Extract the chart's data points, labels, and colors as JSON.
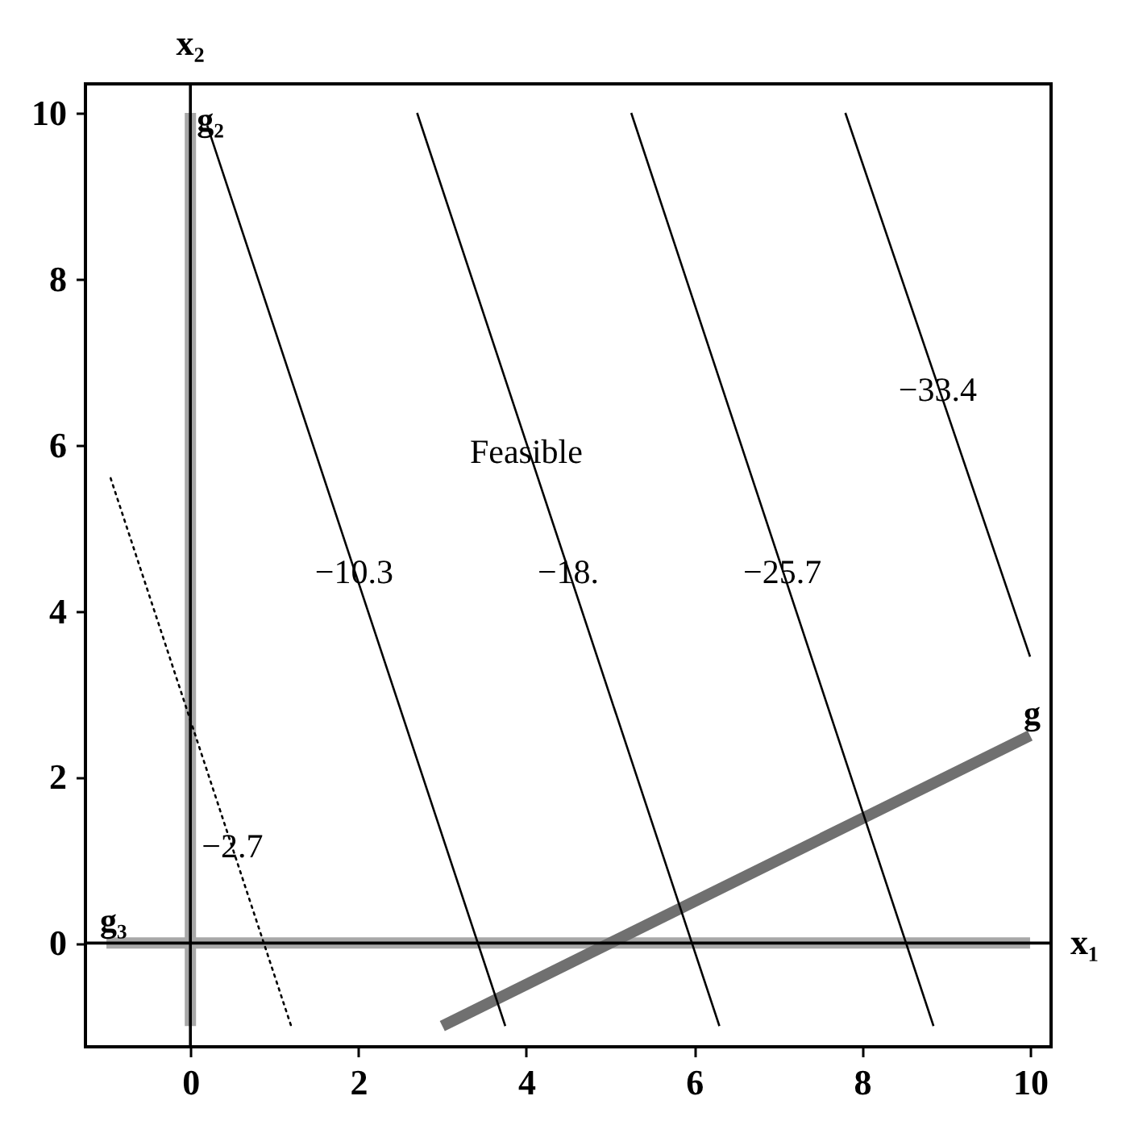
{
  "chart_data": {
    "type": "line",
    "xlim": [
      -1.25,
      10.25
    ],
    "ylim": [
      -1.25,
      10.35
    ],
    "xticks": [
      0,
      2,
      4,
      6,
      8,
      10
    ],
    "yticks": [
      0,
      2,
      4,
      6,
      8,
      10
    ],
    "series": [
      {
        "name": "g₂",
        "color": "#a8a8a8",
        "x": [
          0,
          0
        ],
        "values": [
          -1,
          10
        ]
      },
      {
        "name": "g₃",
        "color": "#a8a8a8",
        "x": [
          10,
          -1
        ],
        "values": [
          0,
          0
        ]
      },
      {
        "name": "g",
        "color": "#707070",
        "x": [
          3,
          10
        ],
        "values": [
          -1,
          2.5
        ]
      },
      {
        "color": "#000000",
        "line_style": "dotted",
        "x": [
          -0.95,
          1.2
        ],
        "values": [
          5.6,
          -1
        ]
      },
      {
        "color": "#000000",
        "x": [
          0.2,
          3.75
        ],
        "values": [
          9.85,
          -1
        ]
      },
      {
        "color": "#000000",
        "x": [
          2.7,
          6.3
        ],
        "values": [
          10,
          -1
        ]
      },
      {
        "color": "#000000",
        "x": [
          5.25,
          8.85
        ],
        "values": [
          10,
          -1
        ]
      },
      {
        "color": "#000000",
        "x": [
          7.8,
          10
        ],
        "values": [
          10,
          3.45
        ]
      }
    ],
    "ref_lines": [
      {
        "axis": "x",
        "value": 0,
        "label": "x₂",
        "color": "#000000"
      },
      {
        "axis": "y",
        "value": 0,
        "label": "x₁",
        "color": "#000000"
      }
    ],
    "annotations": [
      {
        "text": "−2.7",
        "x": 0.5,
        "y": 1.15
      },
      {
        "text": "−10.3",
        "x": 1.95,
        "y": 4.45
      },
      {
        "text": "−18.",
        "x": 4.5,
        "y": 4.45
      },
      {
        "text": "−25.7",
        "x": 7.05,
        "y": 4.45
      },
      {
        "text": "−33.4",
        "x": 8.9,
        "y": 6.65
      },
      {
        "text": "Feasible",
        "x": 4,
        "y": 5.9
      }
    ]
  }
}
